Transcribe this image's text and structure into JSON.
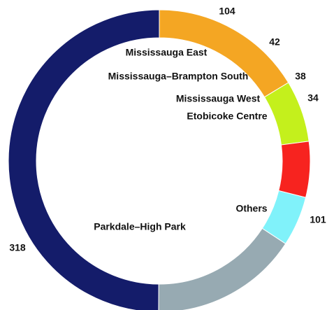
{
  "chart_data": {
    "type": "donut",
    "categories": [
      "Mississauga East",
      "Mississauga–Brampton South",
      "Mississauga West",
      "Etobicoke Centre",
      "Others",
      "Parkdale–High Park"
    ],
    "values": [
      104,
      42,
      38,
      34,
      101,
      318
    ],
    "colors": [
      "#f4a623",
      "#c4f01c",
      "#f7231f",
      "#80f2fa",
      "#97aab2",
      "#141c6a"
    ]
  }
}
